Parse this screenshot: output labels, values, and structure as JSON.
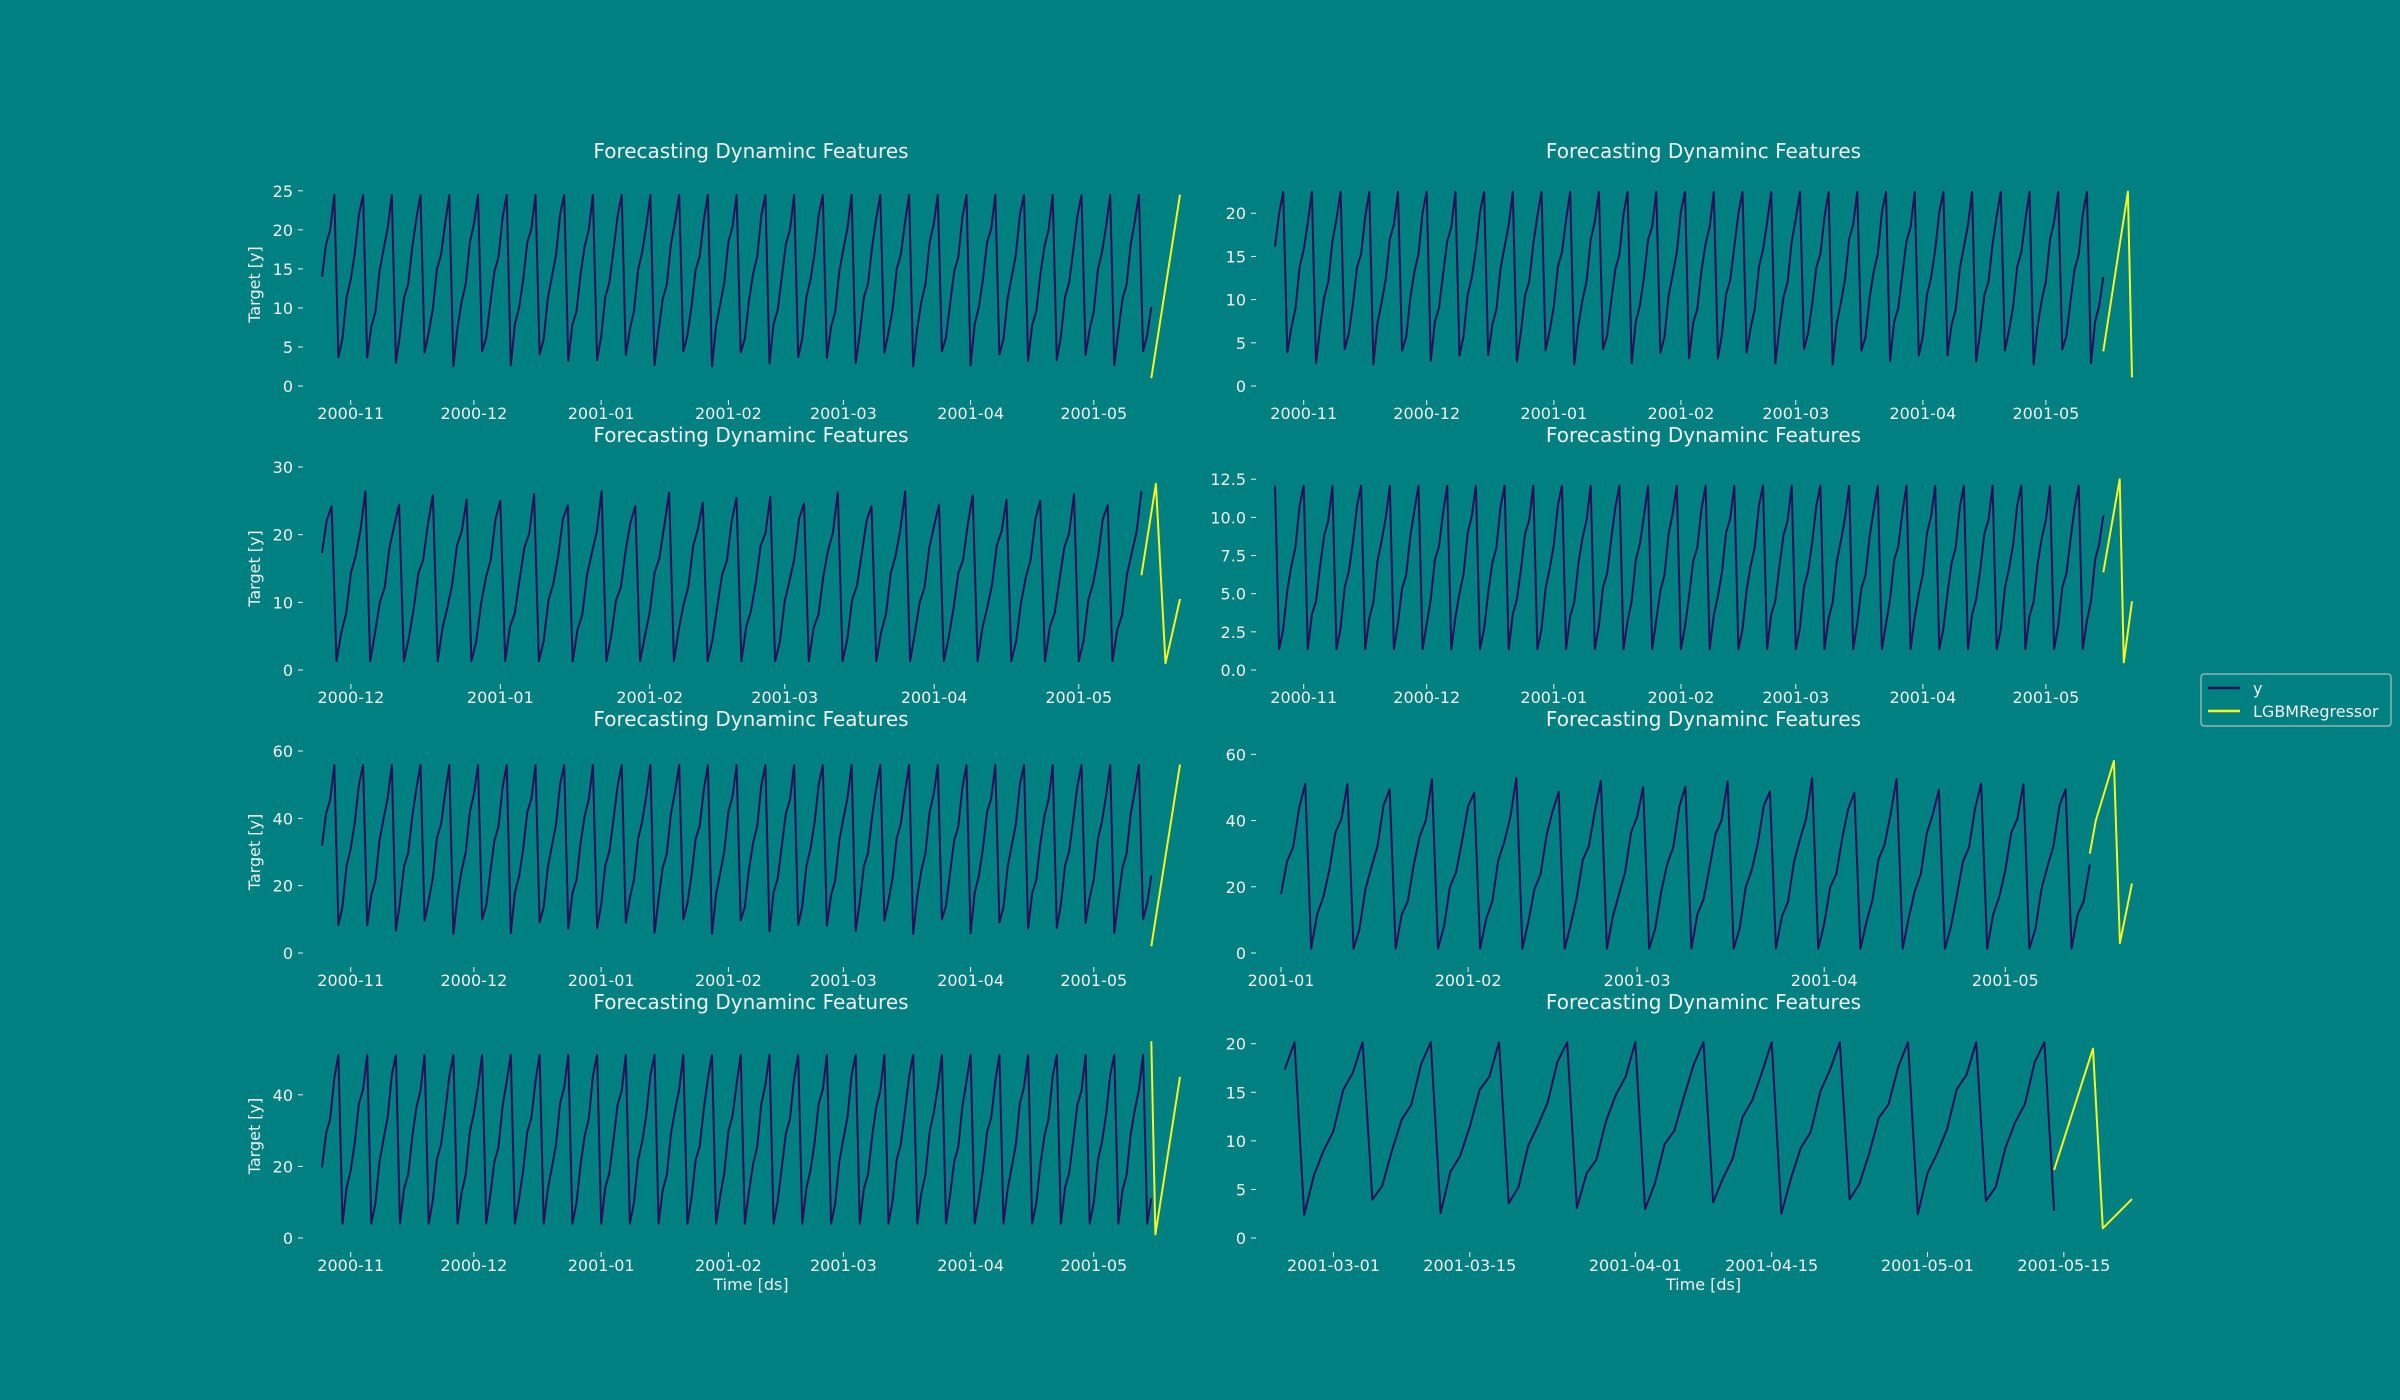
{
  "figure": {
    "background": "#008080",
    "text_color": "#f0f0f0",
    "legend": {
      "placement": "right-center",
      "entries": [
        {
          "label": "y",
          "color": "#2a0f5a"
        },
        {
          "label": "LGBMRegressor",
          "color": "#f5f520"
        }
      ]
    }
  },
  "chart_data": [
    {
      "type": "line",
      "title": "Forecasting Dynaminc Features",
      "xlabel": "",
      "ylabel": "Target [y]",
      "x_range": [
        "2000-10-25",
        "2001-05-22"
      ],
      "ylim": [
        0,
        26
      ],
      "yticks": [
        "0",
        "5",
        "10",
        "15",
        "20",
        "25"
      ],
      "xticks": [
        {
          "label": "2000-11",
          "x": "2000-11-01"
        },
        {
          "label": "2000-12",
          "x": "2000-12-01"
        },
        {
          "label": "2001-01",
          "x": "2001-01-01"
        },
        {
          "label": "2001-02",
          "x": "2001-02-01"
        },
        {
          "label": "2001-03",
          "x": "2001-03-01"
        },
        {
          "label": "2001-04",
          "x": "2001-04-01"
        },
        {
          "label": "2001-05",
          "x": "2001-05-01"
        }
      ],
      "series": [
        {
          "name": "y",
          "color": "#2a0f5a",
          "sawtooth": {
            "start": "2000-10-25",
            "end": "2001-05-15",
            "period_days": 7,
            "min": 0.5,
            "max": 25,
            "phase": 0.55
          }
        },
        {
          "name": "LGBMRegressor",
          "color": "#f5f520",
          "x": [
            "2001-05-15",
            "2001-05-22"
          ],
          "values": [
            1,
            24.5
          ]
        }
      ]
    },
    {
      "type": "line",
      "title": "Forecasting Dynaminc Features",
      "xlabel": "",
      "ylabel": "",
      "x_range": [
        "2000-10-25",
        "2001-05-22"
      ],
      "ylim": [
        0,
        23.5
      ],
      "yticks": [
        "0",
        "5",
        "10",
        "15",
        "20"
      ],
      "xticks": [
        {
          "label": "2000-11",
          "x": "2000-11-01"
        },
        {
          "label": "2000-12",
          "x": "2000-12-01"
        },
        {
          "label": "2001-01",
          "x": "2001-01-01"
        },
        {
          "label": "2001-02",
          "x": "2001-02-01"
        },
        {
          "label": "2001-03",
          "x": "2001-03-01"
        },
        {
          "label": "2001-04",
          "x": "2001-04-01"
        },
        {
          "label": "2001-05",
          "x": "2001-05-01"
        }
      ],
      "series": [
        {
          "name": "y",
          "color": "#2a0f5a",
          "sawtooth": {
            "start": "2000-10-25",
            "end": "2001-05-15",
            "period_days": 7,
            "min": 0.5,
            "max": 22.8,
            "phase": 0.7
          }
        },
        {
          "name": "LGBMRegressor",
          "color": "#f5f520",
          "x": [
            "2001-05-15",
            "2001-05-21",
            "2001-05-22"
          ],
          "values": [
            4,
            22.5,
            1
          ]
        }
      ]
    },
    {
      "type": "line",
      "title": "Forecasting Dynaminc Features",
      "xlabel": "",
      "ylabel": "Target [y]",
      "x_range": [
        "2000-11-25",
        "2001-05-22"
      ],
      "ylim": [
        0,
        30
      ],
      "yticks": [
        "0",
        "10",
        "20",
        "30"
      ],
      "xticks": [
        {
          "label": "2000-12",
          "x": "2000-12-01"
        },
        {
          "label": "2001-01",
          "x": "2001-01-01"
        },
        {
          "label": "2001-02",
          "x": "2001-02-01"
        },
        {
          "label": "2001-03",
          "x": "2001-03-01"
        },
        {
          "label": "2001-04",
          "x": "2001-04-01"
        },
        {
          "label": "2001-05",
          "x": "2001-05-01"
        }
      ],
      "series": [
        {
          "name": "y",
          "color": "#2a0f5a",
          "sawtooth": {
            "start": "2000-11-25",
            "end": "2001-05-14",
            "period_days": 7,
            "min": 0.5,
            "max": 28.5,
            "phase": 0.6
          }
        },
        {
          "name": "LGBMRegressor",
          "color": "#f5f520",
          "x": [
            "2001-05-14",
            "2001-05-17",
            "2001-05-19",
            "2001-05-22"
          ],
          "values": [
            14,
            27.5,
            1,
            10.5
          ]
        }
      ]
    },
    {
      "type": "line",
      "title": "Forecasting Dynaminc Features",
      "xlabel": "",
      "ylabel": "",
      "x_range": [
        "2000-10-25",
        "2001-05-22"
      ],
      "ylim": [
        0,
        13.3
      ],
      "yticks": [
        "0.0",
        "2.5",
        "5.0",
        "7.5",
        "10.0",
        "12.5"
      ],
      "xticks": [
        {
          "label": "2000-11",
          "x": "2000-11-01"
        },
        {
          "label": "2000-12",
          "x": "2000-12-01"
        },
        {
          "label": "2001-01",
          "x": "2001-01-01"
        },
        {
          "label": "2001-02",
          "x": "2001-02-01"
        },
        {
          "label": "2001-03",
          "x": "2001-03-01"
        },
        {
          "label": "2001-04",
          "x": "2001-04-01"
        },
        {
          "label": "2001-05",
          "x": "2001-05-01"
        }
      ],
      "series": [
        {
          "name": "y",
          "color": "#2a0f5a",
          "sawtooth": {
            "start": "2000-10-25",
            "end": "2001-05-15",
            "period_days": 7,
            "min": 0.2,
            "max": 12.7,
            "phase": 0.95
          }
        },
        {
          "name": "LGBMRegressor",
          "color": "#f5f520",
          "x": [
            "2001-05-15",
            "2001-05-19",
            "2001-05-20",
            "2001-05-22"
          ],
          "values": [
            6.4,
            12.5,
            0.5,
            4.5
          ]
        }
      ]
    },
    {
      "type": "line",
      "title": "Forecasting Dynaminc Features",
      "xlabel": "",
      "ylabel": "Target [y]",
      "x_range": [
        "2000-10-25",
        "2001-05-22"
      ],
      "ylim": [
        0,
        60
      ],
      "yticks": [
        "0",
        "20",
        "40",
        "60"
      ],
      "xticks": [
        {
          "label": "2000-11",
          "x": "2000-11-01"
        },
        {
          "label": "2000-12",
          "x": "2000-12-01"
        },
        {
          "label": "2001-01",
          "x": "2001-01-01"
        },
        {
          "label": "2001-02",
          "x": "2001-02-01"
        },
        {
          "label": "2001-03",
          "x": "2001-03-01"
        },
        {
          "label": "2001-04",
          "x": "2001-04-01"
        },
        {
          "label": "2001-05",
          "x": "2001-05-01"
        }
      ],
      "series": [
        {
          "name": "y",
          "color": "#2a0f5a",
          "sawtooth": {
            "start": "2000-10-25",
            "end": "2001-05-15",
            "period_days": 7,
            "min": 1,
            "max": 57,
            "phase": 0.55
          }
        },
        {
          "name": "LGBMRegressor",
          "color": "#f5f520",
          "x": [
            "2001-05-15",
            "2001-05-22"
          ],
          "values": [
            2,
            56
          ]
        }
      ]
    },
    {
      "type": "line",
      "title": "Forecasting Dynaminc Features",
      "xlabel": "",
      "ylabel": "",
      "x_range": [
        "2000-12-31",
        "2001-05-22"
      ],
      "ylim": [
        0,
        61
      ],
      "yticks": [
        "0",
        "20",
        "40",
        "60"
      ],
      "xticks": [
        {
          "label": "2001-01",
          "x": "2001-01-01"
        },
        {
          "label": "2001-02",
          "x": "2001-02-01"
        },
        {
          "label": "2001-03",
          "x": "2001-03-01"
        },
        {
          "label": "2001-04",
          "x": "2001-04-01"
        },
        {
          "label": "2001-05",
          "x": "2001-05-01"
        }
      ],
      "series": [
        {
          "name": "y",
          "color": "#2a0f5a",
          "sawtooth": {
            "start": "2001-01-01",
            "end": "2001-05-15",
            "period_days": 7,
            "min": 0.5,
            "max": 58,
            "phase": 0.3
          }
        },
        {
          "name": "LGBMRegressor",
          "color": "#f5f520",
          "x": [
            "2001-05-15",
            "2001-05-16",
            "2001-05-19",
            "2001-05-20",
            "2001-05-22"
          ],
          "values": [
            30,
            40,
            58,
            3,
            21
          ]
        }
      ]
    },
    {
      "type": "line",
      "title": "Forecasting Dynaminc Features",
      "xlabel": "Time [ds]",
      "ylabel": "Target [y]",
      "x_range": [
        "2000-10-25",
        "2001-05-22"
      ],
      "ylim": [
        0,
        57
      ],
      "yticks": [
        "0",
        "20",
        "40"
      ],
      "xticks": [
        {
          "label": "2000-11",
          "x": "2000-11-01"
        },
        {
          "label": "2000-12",
          "x": "2000-12-01"
        },
        {
          "label": "2001-01",
          "x": "2001-01-01"
        },
        {
          "label": "2001-02",
          "x": "2001-02-01"
        },
        {
          "label": "2001-03",
          "x": "2001-03-01"
        },
        {
          "label": "2001-04",
          "x": "2001-04-01"
        },
        {
          "label": "2001-05",
          "x": "2001-05-01"
        }
      ],
      "series": [
        {
          "name": "y",
          "color": "#2a0f5a",
          "sawtooth": {
            "start": "2000-10-25",
            "end": "2001-05-15",
            "period_days": 7,
            "min": 0.5,
            "max": 55.5,
            "phase": 0.35
          }
        },
        {
          "name": "LGBMRegressor",
          "color": "#f5f520",
          "x": [
            "2001-05-15",
            "2001-05-16",
            "2001-05-22"
          ],
          "values": [
            55,
            1,
            45
          ]
        }
      ]
    },
    {
      "type": "line",
      "title": "Forecasting Dynaminc Features",
      "xlabel": "Time [ds]",
      "ylabel": "",
      "x_range": [
        "2001-02-23",
        "2001-05-22"
      ],
      "ylim": [
        0,
        21
      ],
      "yticks": [
        "0",
        "5",
        "10",
        "15",
        "20"
      ],
      "xticks": [
        {
          "label": "2001-03-01",
          "x": "2001-03-01"
        },
        {
          "label": "2001-03-15",
          "x": "2001-03-15"
        },
        {
          "label": "2001-04-01",
          "x": "2001-04-01"
        },
        {
          "label": "2001-04-15",
          "x": "2001-04-15"
        },
        {
          "label": "2001-05-01",
          "x": "2001-05-01"
        },
        {
          "label": "2001-05-15",
          "x": "2001-05-15"
        }
      ],
      "series": [
        {
          "name": "y",
          "color": "#2a0f5a",
          "sawtooth": {
            "start": "2001-02-24",
            "end": "2001-05-14",
            "period_days": 7,
            "min": 0.5,
            "max": 20.3,
            "phase": 0.85
          }
        },
        {
          "name": "LGBMRegressor",
          "color": "#f5f520",
          "x": [
            "2001-05-14",
            "2001-05-18",
            "2001-05-19",
            "2001-05-22"
          ],
          "values": [
            7,
            19.5,
            1,
            4
          ]
        }
      ]
    }
  ]
}
